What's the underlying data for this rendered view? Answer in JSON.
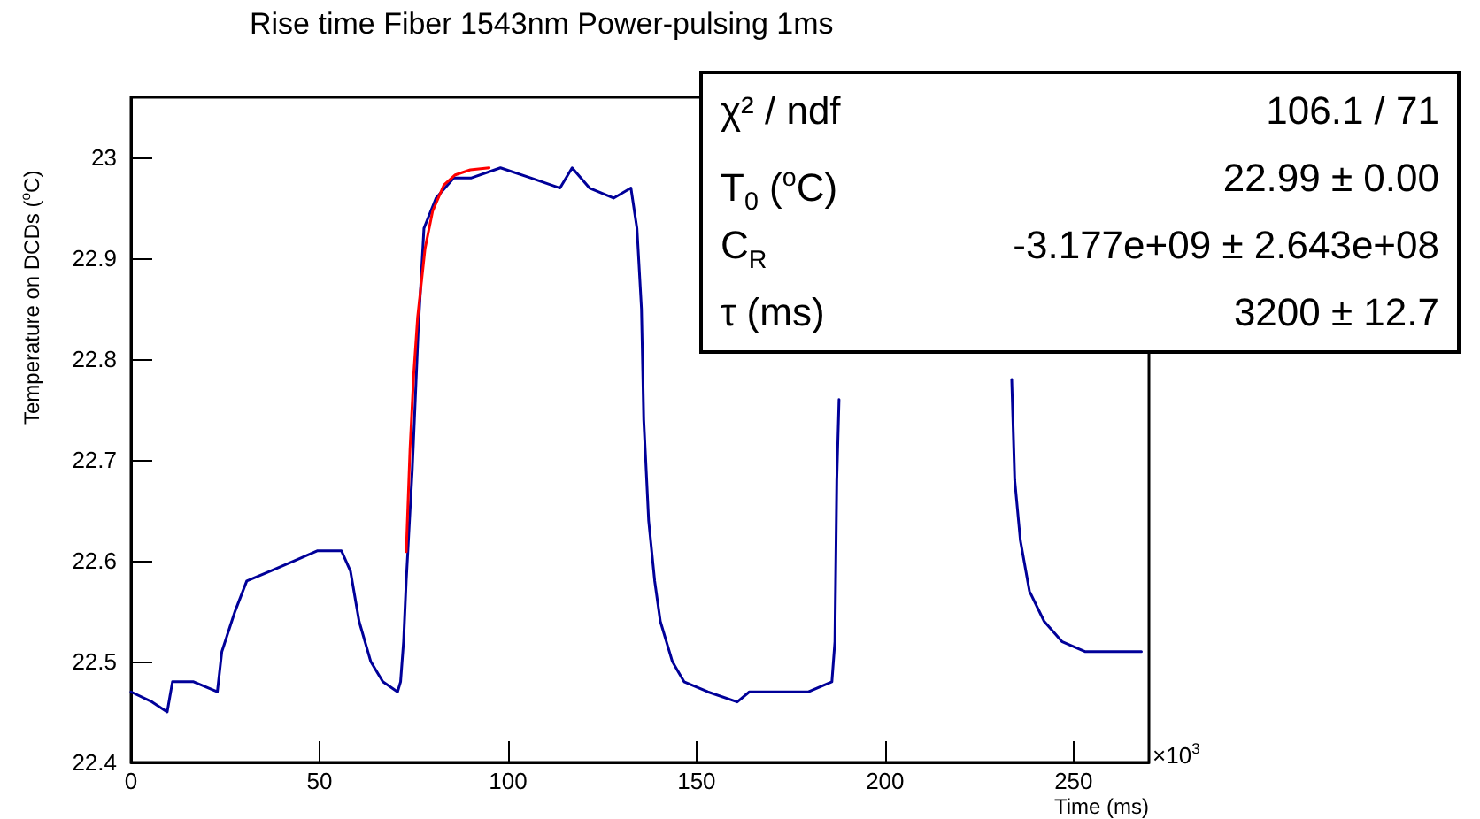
{
  "chart_data": {
    "type": "line",
    "title": "Rise time Fiber 1543nm Power-pulsing 1ms",
    "xlabel": "Time (ms)",
    "ylabel": "Temperature on DCDs ($^{o}$C)",
    "annotations": [
      "×10$^{3}$",
      "χ² / ndf",
      "106.1 / 71",
      "T$_{0}$ ($^{o}$C)",
      "22.99 ± 0.00",
      "C$_{R}$",
      "-3.177e+09 ± 2.643e+08",
      "τ (ms)",
      "3200 ± 12.7"
    ],
    "x": [
      0,
      5.6,
      9.6,
      11,
      16.6,
      22.9,
      24.1,
      27.6,
      30.7,
      37,
      43.3,
      49.5,
      55.8,
      58.2,
      60.5,
      63.6,
      66.8,
      70.7,
      71.5,
      72.3,
      73,
      74.6,
      76.2,
      77.7,
      80.9,
      85.6,
      90.3,
      98,
      106,
      113.8,
      117,
      121.6,
      128,
      132.6,
      134.2,
      135.4,
      136,
      137.3,
      138.9,
      140.4,
      143.6,
      146.7,
      153,
      160.8,
      164,
      179.7,
      185.9,
      186.7,
      187.2,
      187.8,
      210,
      233.6,
      234.4,
      235.9,
      238.3,
      242.2,
      246.9,
      253,
      261,
      268
    ],
    "series": [
      {
        "color": "#000099",
        "values": [
          22.47,
          22.46,
          22.45,
          22.48,
          22.48,
          22.47,
          22.51,
          22.55,
          22.58,
          22.59,
          22.6,
          22.61,
          22.61,
          22.59,
          22.54,
          22.5,
          22.48,
          22.47,
          22.48,
          22.52,
          22.58,
          22.69,
          22.83,
          22.93,
          22.96,
          22.98,
          22.98,
          22.99,
          22.98,
          22.97,
          22.99,
          22.97,
          22.96,
          22.97,
          22.93,
          22.85,
          22.74,
          22.64,
          22.58,
          22.54,
          22.5,
          22.48,
          22.47,
          22.46,
          22.47,
          22.47,
          22.48,
          22.52,
          22.68,
          22.76,
          null,
          22.78,
          22.68,
          22.62,
          22.57,
          22.54,
          22.52,
          22.51,
          22.51,
          22.51
        ]
      },
      {
        "color": "#ff0000",
        "x": [
          73,
          74,
          75,
          76,
          78,
          80,
          83,
          86,
          90,
          95
        ],
        "values": [
          22.609,
          22.711,
          22.786,
          22.841,
          22.91,
          22.947,
          22.973,
          22.983,
          22.988,
          22.99
        ]
      }
    ],
    "xlim": [
      0,
      270
    ],
    "xticks": [
      0,
      50,
      100,
      150,
      200,
      250
    ],
    "ylim": [
      22.4,
      23.06
    ],
    "yticks": [
      22.4,
      22.5,
      22.6,
      22.7,
      22.8,
      22.9,
      23
    ],
    "grid": false,
    "marker": "none",
    "line_style": "solid"
  }
}
